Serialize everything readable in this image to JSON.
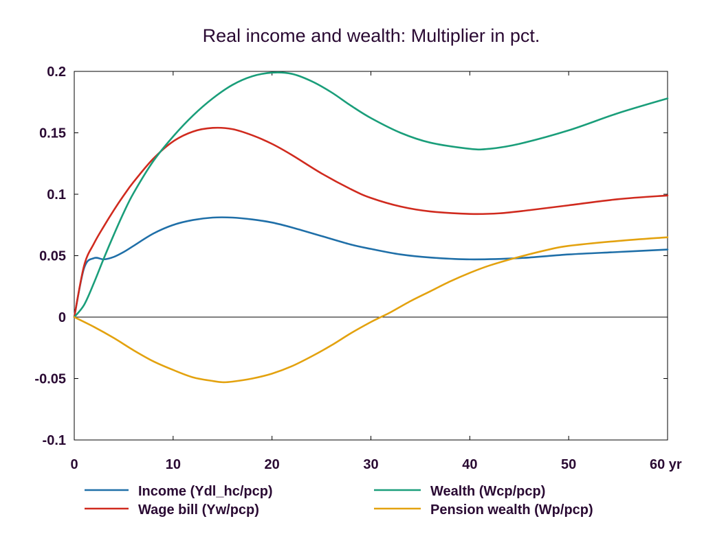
{
  "chart_data": {
    "type": "line",
    "title": "Real income and wealth: Multiplier in pct.",
    "xlabel": "",
    "ylabel": "",
    "xlim": [
      0,
      60
    ],
    "ylim": [
      -0.1,
      0.2
    ],
    "x_ticks": [
      0,
      10,
      20,
      30,
      40,
      50,
      60
    ],
    "x_tick_labels": [
      "0",
      "10",
      "20",
      "30",
      "40",
      "50",
      "60 yr"
    ],
    "y_ticks": [
      -0.1,
      -0.05,
      0,
      0.05,
      0.1,
      0.15,
      0.2
    ],
    "y_tick_labels": [
      "-0.1",
      "-0.05",
      "0",
      "0.05",
      "0.1",
      "0.15",
      "0.2"
    ],
    "grid": false,
    "zero_line": true,
    "legend_position": "bottom",
    "series": [
      {
        "name": "Income (Ydl_hc/pcp)",
        "color": "#1f6fa8",
        "x": [
          0,
          1,
          2,
          3,
          4,
          5,
          6,
          8,
          10,
          12,
          14,
          16,
          18,
          20,
          22,
          25,
          28,
          30,
          33,
          36,
          40,
          45,
          50,
          55,
          60
        ],
        "y": [
          0,
          0.04,
          0.048,
          0.047,
          0.049,
          0.053,
          0.058,
          0.068,
          0.075,
          0.079,
          0.081,
          0.081,
          0.0795,
          0.077,
          0.073,
          0.066,
          0.059,
          0.0555,
          0.051,
          0.0485,
          0.047,
          0.048,
          0.051,
          0.053,
          0.055
        ]
      },
      {
        "name": "Wage bill (Yw/pcp)",
        "color": "#d02a1e",
        "x": [
          0,
          1,
          2,
          3,
          4,
          5,
          6,
          8,
          10,
          12,
          14,
          16,
          18,
          20,
          22,
          25,
          28,
          30,
          33,
          36,
          40,
          43,
          46,
          50,
          55,
          60
        ],
        "y": [
          0,
          0.042,
          0.06,
          0.074,
          0.087,
          0.099,
          0.11,
          0.129,
          0.143,
          0.151,
          0.154,
          0.153,
          0.148,
          0.141,
          0.132,
          0.117,
          0.104,
          0.097,
          0.09,
          0.086,
          0.084,
          0.0845,
          0.087,
          0.091,
          0.096,
          0.099
        ]
      },
      {
        "name": "Wealth (Wcp/pcp)",
        "color": "#1a9e7a",
        "x": [
          0,
          1,
          2,
          3,
          4,
          5,
          6,
          8,
          10,
          12,
          14,
          16,
          18,
          20,
          22,
          24,
          26,
          28,
          30,
          33,
          36,
          40,
          42,
          45,
          50,
          55,
          60
        ],
        "y": [
          0,
          0.01,
          0.028,
          0.048,
          0.067,
          0.085,
          0.101,
          0.127,
          0.147,
          0.164,
          0.178,
          0.189,
          0.196,
          0.199,
          0.198,
          0.192,
          0.183,
          0.172,
          0.162,
          0.15,
          0.142,
          0.137,
          0.137,
          0.141,
          0.152,
          0.166,
          0.178
        ]
      },
      {
        "name": "Pension wealth (Wp/pcp)",
        "color": "#e3a20f",
        "x": [
          0,
          2,
          4,
          6,
          8,
          10,
          12,
          14,
          15,
          16,
          18,
          20,
          22,
          24,
          26,
          28,
          30,
          31,
          32,
          34,
          36,
          38,
          40,
          42,
          45,
          48,
          50,
          55,
          60
        ],
        "y": [
          0,
          -0.008,
          -0.017,
          -0.027,
          -0.036,
          -0.043,
          -0.049,
          -0.052,
          -0.053,
          -0.0525,
          -0.05,
          -0.046,
          -0.04,
          -0.032,
          -0.023,
          -0.013,
          -0.004,
          0,
          0.004,
          0.013,
          0.021,
          0.029,
          0.036,
          0.042,
          0.049,
          0.055,
          0.058,
          0.062,
          0.065
        ]
      }
    ]
  }
}
